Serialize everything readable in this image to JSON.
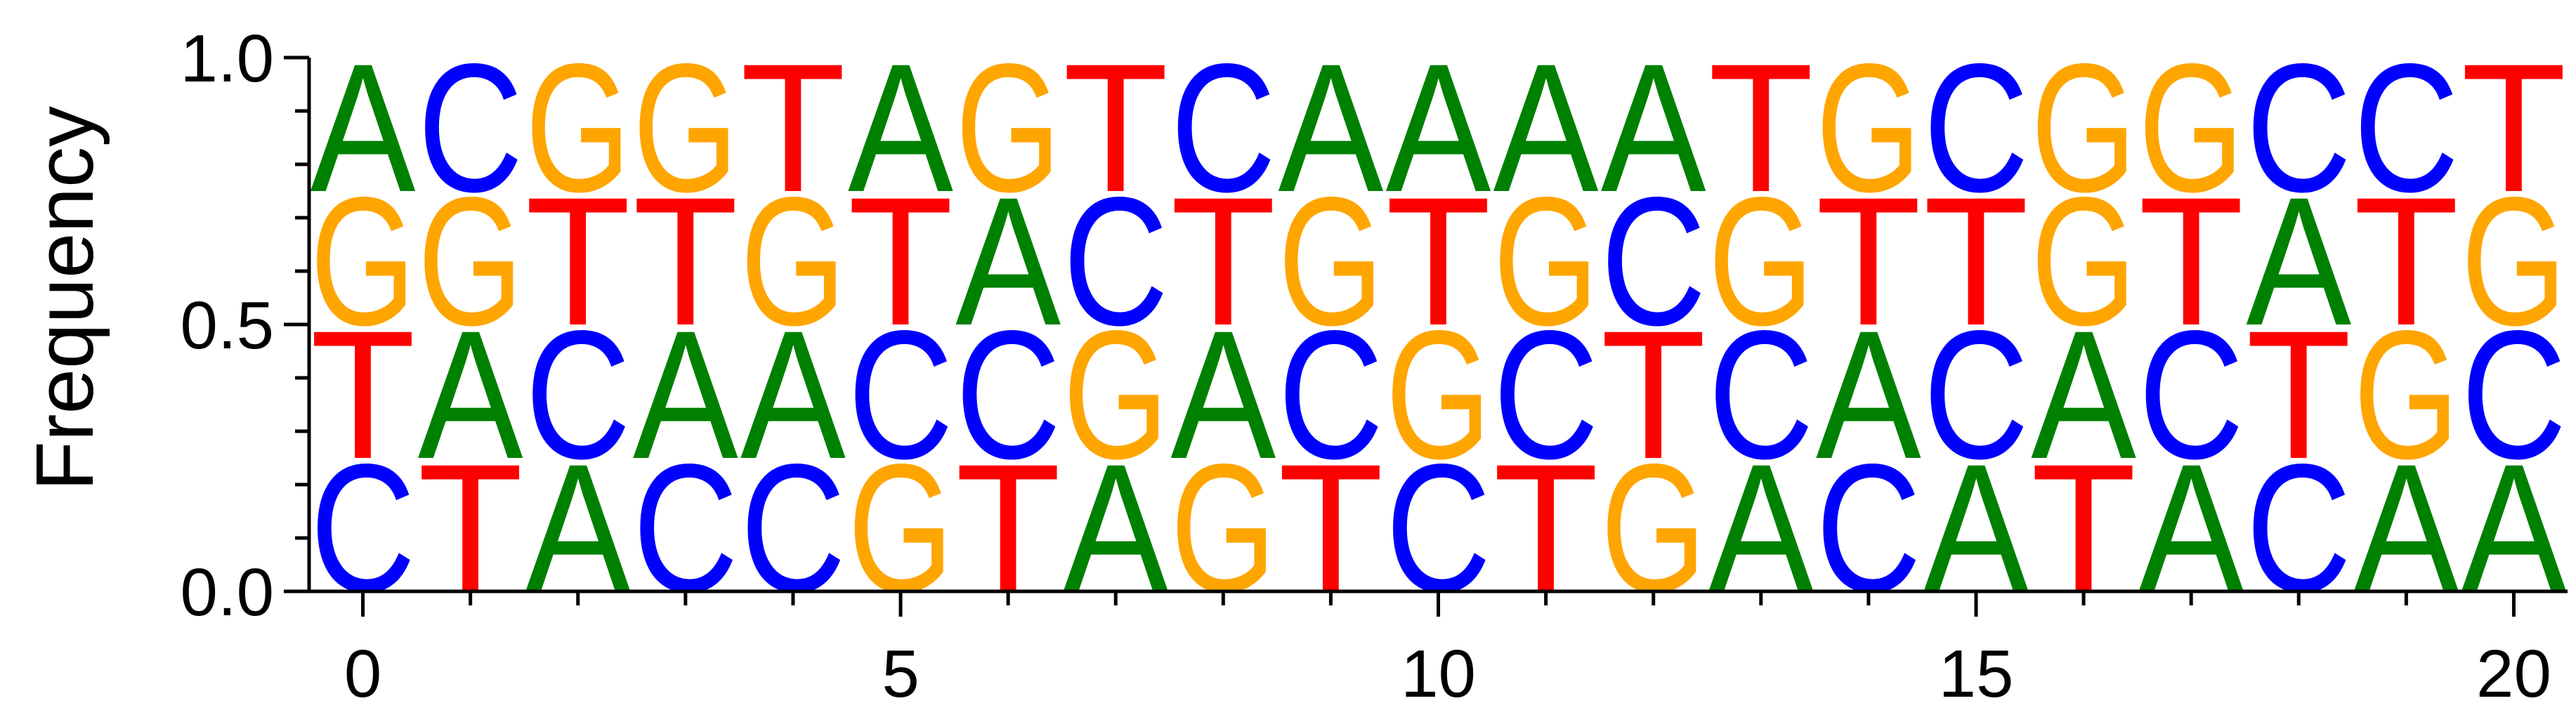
{
  "chart_data": {
    "type": "sequence-logo",
    "title": "",
    "xlabel": "",
    "ylabel": "Frequency",
    "ylim": [
      0.0,
      1.0
    ],
    "xlim": [
      -0.5,
      20.5
    ],
    "yticks_major": [
      0.0,
      0.5,
      1.0
    ],
    "ytick_labels": [
      "0.0",
      "0.5",
      "1.0"
    ],
    "yticks_minor": [
      0.1,
      0.2,
      0.3,
      0.4,
      0.6,
      0.7,
      0.8,
      0.9
    ],
    "xticks_major": [
      0,
      5,
      10,
      15,
      20
    ],
    "xtick_labels": [
      "0",
      "5",
      "10",
      "15",
      "20"
    ],
    "xticks_minor": [
      1,
      2,
      3,
      4,
      6,
      7,
      8,
      9,
      11,
      12,
      13,
      14,
      16,
      17,
      18,
      19
    ],
    "grid": false,
    "colors": {
      "A": "#008000",
      "C": "#0000ff",
      "G": "#ffa500",
      "T": "#ff0000"
    },
    "positions": [
      {
        "x": 0,
        "stack": [
          {
            "letter": "C",
            "freq": 0.25
          },
          {
            "letter": "T",
            "freq": 0.25
          },
          {
            "letter": "G",
            "freq": 0.25
          },
          {
            "letter": "A",
            "freq": 0.25
          }
        ]
      },
      {
        "x": 1,
        "stack": [
          {
            "letter": "T",
            "freq": 0.25
          },
          {
            "letter": "A",
            "freq": 0.25
          },
          {
            "letter": "G",
            "freq": 0.25
          },
          {
            "letter": "C",
            "freq": 0.25
          }
        ]
      },
      {
        "x": 2,
        "stack": [
          {
            "letter": "A",
            "freq": 0.25
          },
          {
            "letter": "C",
            "freq": 0.25
          },
          {
            "letter": "T",
            "freq": 0.25
          },
          {
            "letter": "G",
            "freq": 0.25
          }
        ]
      },
      {
        "x": 3,
        "stack": [
          {
            "letter": "C",
            "freq": 0.25
          },
          {
            "letter": "A",
            "freq": 0.25
          },
          {
            "letter": "T",
            "freq": 0.25
          },
          {
            "letter": "G",
            "freq": 0.25
          }
        ]
      },
      {
        "x": 4,
        "stack": [
          {
            "letter": "C",
            "freq": 0.25
          },
          {
            "letter": "A",
            "freq": 0.25
          },
          {
            "letter": "G",
            "freq": 0.25
          },
          {
            "letter": "T",
            "freq": 0.25
          }
        ]
      },
      {
        "x": 5,
        "stack": [
          {
            "letter": "G",
            "freq": 0.25
          },
          {
            "letter": "C",
            "freq": 0.25
          },
          {
            "letter": "T",
            "freq": 0.25
          },
          {
            "letter": "A",
            "freq": 0.25
          }
        ]
      },
      {
        "x": 6,
        "stack": [
          {
            "letter": "T",
            "freq": 0.25
          },
          {
            "letter": "C",
            "freq": 0.25
          },
          {
            "letter": "A",
            "freq": 0.25
          },
          {
            "letter": "G",
            "freq": 0.25
          }
        ]
      },
      {
        "x": 7,
        "stack": [
          {
            "letter": "A",
            "freq": 0.25
          },
          {
            "letter": "G",
            "freq": 0.25
          },
          {
            "letter": "C",
            "freq": 0.25
          },
          {
            "letter": "T",
            "freq": 0.25
          }
        ]
      },
      {
        "x": 8,
        "stack": [
          {
            "letter": "G",
            "freq": 0.25
          },
          {
            "letter": "A",
            "freq": 0.25
          },
          {
            "letter": "T",
            "freq": 0.25
          },
          {
            "letter": "C",
            "freq": 0.25
          }
        ]
      },
      {
        "x": 9,
        "stack": [
          {
            "letter": "T",
            "freq": 0.25
          },
          {
            "letter": "C",
            "freq": 0.25
          },
          {
            "letter": "G",
            "freq": 0.25
          },
          {
            "letter": "A",
            "freq": 0.25
          }
        ]
      },
      {
        "x": 10,
        "stack": [
          {
            "letter": "C",
            "freq": 0.25
          },
          {
            "letter": "G",
            "freq": 0.25
          },
          {
            "letter": "T",
            "freq": 0.25
          },
          {
            "letter": "A",
            "freq": 0.25
          }
        ]
      },
      {
        "x": 11,
        "stack": [
          {
            "letter": "T",
            "freq": 0.25
          },
          {
            "letter": "C",
            "freq": 0.25
          },
          {
            "letter": "G",
            "freq": 0.25
          },
          {
            "letter": "A",
            "freq": 0.25
          }
        ]
      },
      {
        "x": 12,
        "stack": [
          {
            "letter": "G",
            "freq": 0.25
          },
          {
            "letter": "T",
            "freq": 0.25
          },
          {
            "letter": "C",
            "freq": 0.25
          },
          {
            "letter": "A",
            "freq": 0.25
          }
        ]
      },
      {
        "x": 13,
        "stack": [
          {
            "letter": "A",
            "freq": 0.25
          },
          {
            "letter": "C",
            "freq": 0.25
          },
          {
            "letter": "G",
            "freq": 0.25
          },
          {
            "letter": "T",
            "freq": 0.25
          }
        ]
      },
      {
        "x": 14,
        "stack": [
          {
            "letter": "C",
            "freq": 0.25
          },
          {
            "letter": "A",
            "freq": 0.25
          },
          {
            "letter": "T",
            "freq": 0.25
          },
          {
            "letter": "G",
            "freq": 0.25
          }
        ]
      },
      {
        "x": 15,
        "stack": [
          {
            "letter": "A",
            "freq": 0.25
          },
          {
            "letter": "C",
            "freq": 0.25
          },
          {
            "letter": "T",
            "freq": 0.25
          },
          {
            "letter": "C",
            "freq": 0.25
          }
        ]
      },
      {
        "x": 16,
        "stack": [
          {
            "letter": "T",
            "freq": 0.25
          },
          {
            "letter": "A",
            "freq": 0.25
          },
          {
            "letter": "G",
            "freq": 0.25
          },
          {
            "letter": "G",
            "freq": 0.25
          }
        ]
      },
      {
        "x": 17,
        "stack": [
          {
            "letter": "A",
            "freq": 0.25
          },
          {
            "letter": "C",
            "freq": 0.25
          },
          {
            "letter": "T",
            "freq": 0.25
          },
          {
            "letter": "G",
            "freq": 0.25
          }
        ]
      },
      {
        "x": 18,
        "stack": [
          {
            "letter": "C",
            "freq": 0.25
          },
          {
            "letter": "T",
            "freq": 0.25
          },
          {
            "letter": "A",
            "freq": 0.25
          },
          {
            "letter": "C",
            "freq": 0.25
          }
        ]
      },
      {
        "x": 19,
        "stack": [
          {
            "letter": "A",
            "freq": 0.25
          },
          {
            "letter": "G",
            "freq": 0.25
          },
          {
            "letter": "T",
            "freq": 0.25
          },
          {
            "letter": "C",
            "freq": 0.25
          }
        ]
      },
      {
        "x": 20,
        "stack": [
          {
            "letter": "A",
            "freq": 0.25
          },
          {
            "letter": "C",
            "freq": 0.25
          },
          {
            "letter": "G",
            "freq": 0.25
          },
          {
            "letter": "T",
            "freq": 0.25
          }
        ]
      }
    ]
  }
}
